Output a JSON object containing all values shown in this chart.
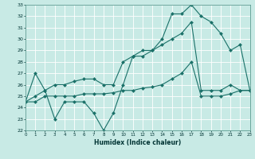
{
  "xlabel": "Humidex (Indice chaleur)",
  "background_color": "#c8eae5",
  "line_color": "#1a7068",
  "grid_color": "#b0ddd8",
  "xmin": 0,
  "xmax": 23,
  "ymin": 22,
  "ymax": 33,
  "series": {
    "line1": {
      "x": [
        0,
        1,
        2,
        3,
        4,
        5,
        6,
        7,
        8,
        9,
        10,
        11,
        12,
        13,
        14,
        15,
        16,
        17,
        18,
        19,
        20,
        21,
        22,
        23
      ],
      "y": [
        24.5,
        27.0,
        25.5,
        23.0,
        24.5,
        24.5,
        24.5,
        23.5,
        22.0,
        23.5,
        26.0,
        28.5,
        28.5,
        29.0,
        30.0,
        32.2,
        32.2,
        33.0,
        32.0,
        31.5,
        30.5,
        29.0,
        29.5,
        25.5
      ]
    },
    "line2": {
      "x": [
        0,
        1,
        2,
        3,
        4,
        5,
        6,
        7,
        8,
        9,
        10,
        11,
        12,
        13,
        14,
        15,
        16,
        17,
        18,
        19,
        20,
        21,
        22,
        23
      ],
      "y": [
        24.5,
        25.0,
        25.5,
        26.0,
        26.0,
        26.3,
        26.5,
        26.5,
        26.0,
        26.0,
        28.0,
        28.5,
        29.0,
        29.0,
        29.5,
        30.0,
        30.5,
        31.5,
        25.5,
        25.5,
        25.5,
        26.0,
        25.5,
        25.5
      ]
    },
    "line3": {
      "x": [
        0,
        1,
        2,
        3,
        4,
        5,
        6,
        7,
        8,
        9,
        10,
        11,
        12,
        13,
        14,
        15,
        16,
        17,
        18,
        19,
        20,
        21,
        22,
        23
      ],
      "y": [
        24.5,
        24.5,
        25.0,
        25.0,
        25.0,
        25.0,
        25.2,
        25.2,
        25.2,
        25.3,
        25.5,
        25.5,
        25.7,
        25.8,
        26.0,
        26.5,
        27.0,
        28.0,
        25.0,
        25.0,
        25.0,
        25.2,
        25.5,
        25.5
      ]
    }
  }
}
